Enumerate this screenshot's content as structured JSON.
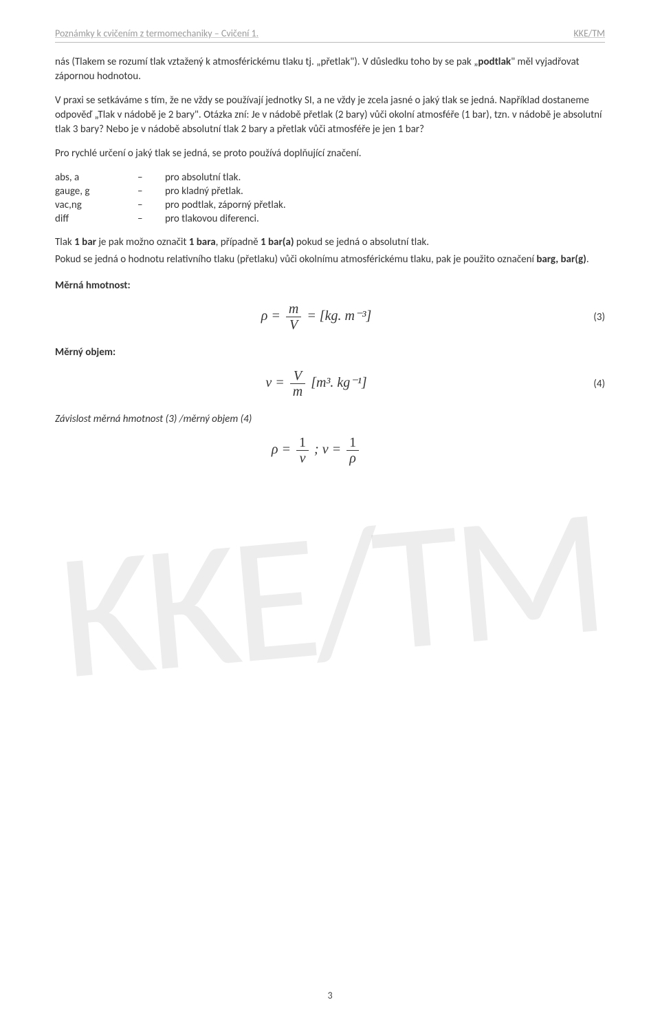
{
  "header": {
    "left": "Poznámky k cvičením z termomechaniky – Cvičení 1.",
    "right": "KKE/TM"
  },
  "paragraphs": {
    "p1a": "nás (Tlakem se rozumí tlak vztažený k atmosférickému tlaku tj. „přetlak\"). V důsledku toho by se pak „",
    "p1b": "podtlak",
    "p1c": "\" měl vyjadřovat zápornou hodnotou.",
    "p2": "V praxi se setkáváme s tím, že ne vždy se používají jednotky SI, a ne vždy je zcela jasné o jaký tlak se jedná. Například dostaneme odpověď „Tlak v nádobě je 2 bary\". Otázka zní: Je v nádobě přetlak (2 bary) vůči okolní atmosféře (1 bar), tzn. v nádobě je absolutní tlak 3 bary? Nebo je v nádobě absolutní tlak 2 bary a přetlak vůči atmosféře je jen 1 bar?",
    "p3": "Pro rychlé určení o jaký tlak se jedná, se proto používá doplňující značení.",
    "p4a": "Tlak ",
    "p4b": "1 bar",
    "p4c": " je pak možno označit ",
    "p4d": "1 bara",
    "p4e": ", případně ",
    "p4f": "1 bar(a)",
    "p4g": " pokud se jedná o absolutní tlak.",
    "p5a": "Pokud se jedná o hodnotu relativního tlaku (přetlaku) vůči okolnímu atmosférickému tlaku, pak je použito označení ",
    "p5b": "barg, bar(g)",
    "p5c": "."
  },
  "definitions": [
    {
      "key": "abs, a",
      "dash": "–",
      "val": "pro absolutní tlak."
    },
    {
      "key": "gauge, g",
      "dash": "–",
      "val": "pro kladný přetlak."
    },
    {
      "key": "vac,ng",
      "dash": "–",
      "val": "pro podtlak, záporný přetlak."
    },
    {
      "key": "diff",
      "dash": "–",
      "val": "pro tlakovou diferenci."
    }
  ],
  "sections": {
    "density": "Měrná hmotnost:",
    "specvol": "Měrný objem:",
    "relation": "Závislost měrná hmotnost (3) /měrný objem (4)"
  },
  "equations": {
    "eq3": {
      "num": "(3)",
      "lhs": "ρ =",
      "frac_num": "m",
      "frac_den": "V",
      "rhs": "= [kg. m⁻³]"
    },
    "eq4": {
      "num": "(4)",
      "lhs": "v =",
      "frac_num": "V",
      "frac_den": "m",
      "rhs": "[m³. kg⁻¹]"
    },
    "eq5": {
      "lhs1": "ρ =",
      "f1n": "1",
      "f1d": "v",
      "mid": ";  v =",
      "f2n": "1",
      "f2d": "ρ"
    }
  },
  "watermark": "KKE/TM",
  "pagenum": "3"
}
